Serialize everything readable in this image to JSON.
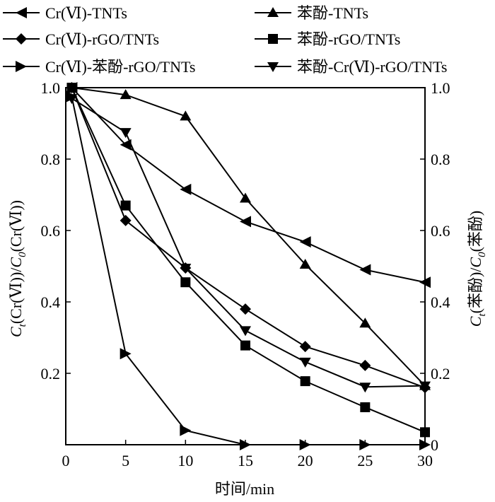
{
  "chart_data": {
    "type": "line",
    "x": [
      0,
      5,
      10,
      15,
      20,
      25,
      30
    ],
    "xlabel": "时间/min",
    "ylabel_left": "Ct(Cr(Ⅵ))/C0(Cr(Ⅵ))",
    "ylabel_right": "Ct(苯酚)/C0(苯酚)",
    "xlim": [
      0,
      30
    ],
    "ylim": [
      0,
      1.0
    ],
    "x_ticks": [
      0,
      5,
      10,
      15,
      20,
      25,
      30
    ],
    "y_ticks_left": [
      0.2,
      0.4,
      0.6,
      0.8,
      1.0
    ],
    "y_ticks_right": [
      0,
      0.2,
      0.4,
      0.6,
      0.8,
      1.0
    ],
    "x_tick_labels": [
      "0",
      "5",
      "10",
      "15",
      "20",
      "25",
      "30"
    ],
    "y_tick_labels_left": [
      "0.2",
      "0.4",
      "0.6",
      "0.8",
      "1.0"
    ],
    "y_tick_labels_right": [
      "0",
      "0.2",
      "0.4",
      "0.6",
      "0.8",
      "1.0"
    ],
    "grid": false,
    "legend_placement": "top",
    "series": [
      {
        "name": "Cr(Ⅵ)-TNTs",
        "marker": "triangle-left",
        "x": [
          0.5,
          5,
          10,
          15,
          20,
          25,
          30
        ],
        "values": [
          1.0,
          0.84,
          0.715,
          0.625,
          0.568,
          0.49,
          0.455
        ]
      },
      {
        "name": "苯酚-TNTs",
        "marker": "triangle-up",
        "x": [
          0.5,
          5,
          10,
          15,
          20,
          25,
          30
        ],
        "values": [
          1.0,
          0.98,
          0.92,
          0.69,
          0.505,
          0.34,
          0.165
        ]
      },
      {
        "name": "Cr(Ⅵ)-rGO/TNTs",
        "marker": "diamond",
        "x": [
          0.5,
          5,
          10,
          15,
          20,
          25,
          30
        ],
        "values": [
          1.0,
          0.628,
          0.495,
          0.38,
          0.275,
          0.222,
          0.16
        ]
      },
      {
        "name": "苯酚-rGO/TNTs",
        "marker": "square",
        "x": [
          0.5,
          5,
          10,
          15,
          20,
          25,
          30
        ],
        "values": [
          1.0,
          0.67,
          0.455,
          0.278,
          0.178,
          0.105,
          0.035
        ]
      },
      {
        "name": "Cr(Ⅵ)-苯酚-rGO/TNTs",
        "marker": "triangle-right",
        "x": [
          0.5,
          5,
          10,
          15,
          20,
          25,
          30
        ],
        "values": [
          0.975,
          0.255,
          0.04,
          0.0,
          0.0,
          0.0,
          0.0
        ]
      },
      {
        "name": "苯酚-Cr(Ⅵ)-rGO/TNTs",
        "marker": "triangle-down",
        "x": [
          0.5,
          5,
          10,
          15,
          20,
          25,
          30
        ],
        "values": [
          0.97,
          0.875,
          0.495,
          0.32,
          0.232,
          0.162,
          0.165
        ]
      }
    ]
  }
}
